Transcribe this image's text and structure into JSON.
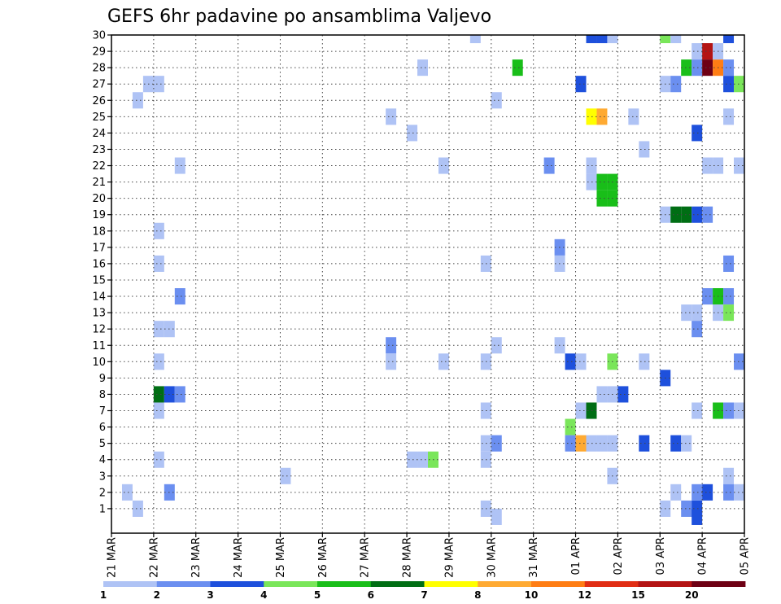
{
  "chart_data": {
    "type": "heatmap",
    "title": "GEFS 6hr padavine po ansamblima Valjevo",
    "y_categories": [
      "1",
      "2",
      "3",
      "4",
      "5",
      "6",
      "7",
      "8",
      "9",
      "10",
      "11",
      "12",
      "13",
      "14",
      "15",
      "16",
      "17",
      "18",
      "19",
      "20",
      "21",
      "22",
      "23",
      "24",
      "25",
      "26",
      "27",
      "28",
      "29",
      "30"
    ],
    "x_tick_labels": [
      "21 MAR",
      "22 MAR",
      "23 MAR",
      "24 MAR",
      "25 MAR",
      "26 MAR",
      "27 MAR",
      "28 MAR",
      "29 MAR",
      "30 MAR",
      "31 MAR",
      "01 APR",
      "02 APR",
      "03 APR",
      "04 APR",
      "05 APR"
    ],
    "x_range_days": [
      0,
      15
    ],
    "time_step_hours": 6,
    "grid": true,
    "colorbar": {
      "levels": [
        "1",
        "2",
        "3",
        "4",
        "5",
        "6",
        "7",
        "8",
        "10",
        "12",
        "15",
        "20"
      ],
      "colors": [
        "#afc3f5",
        "#6b8ff0",
        "#1e50dc",
        "#7ae65a",
        "#19be19",
        "#006e14",
        "#ffff00",
        "#ffaa32",
        "#ff7d14",
        "#e12d14",
        "#b41414",
        "#6e0014"
      ]
    },
    "cells": [
      {
        "x": 0.25,
        "y": 2,
        "v": 1
      },
      {
        "x": 0.5,
        "y": 1,
        "v": 1
      },
      {
        "x": 0.5,
        "y": 26,
        "v": 1
      },
      {
        "x": 0.75,
        "y": 27,
        "v": 1
      },
      {
        "x": 1.0,
        "y": 27,
        "v": 1
      },
      {
        "x": 1.0,
        "y": 18,
        "v": 1
      },
      {
        "x": 1.0,
        "y": 16,
        "v": 1
      },
      {
        "x": 1.0,
        "y": 12,
        "v": 1
      },
      {
        "x": 1.25,
        "y": 12,
        "v": 1
      },
      {
        "x": 1.0,
        "y": 10,
        "v": 1
      },
      {
        "x": 1.0,
        "y": 8,
        "v": 6
      },
      {
        "x": 1.25,
        "y": 8,
        "v": 3
      },
      {
        "x": 1.5,
        "y": 8,
        "v": 2
      },
      {
        "x": 1.0,
        "y": 7,
        "v": 1
      },
      {
        "x": 1.0,
        "y": 4,
        "v": 1
      },
      {
        "x": 1.25,
        "y": 2,
        "v": 2
      },
      {
        "x": 1.5,
        "y": 22,
        "v": 1
      },
      {
        "x": 1.5,
        "y": 14,
        "v": 2
      },
      {
        "x": 4.0,
        "y": 3,
        "v": 1
      },
      {
        "x": 6.5,
        "y": 25,
        "v": 1
      },
      {
        "x": 6.5,
        "y": 11,
        "v": 2
      },
      {
        "x": 6.5,
        "y": 10,
        "v": 1
      },
      {
        "x": 7.0,
        "y": 24,
        "v": 1
      },
      {
        "x": 7.25,
        "y": 28,
        "v": 1
      },
      {
        "x": 7.0,
        "y": 4,
        "v": 1
      },
      {
        "x": 7.25,
        "y": 4,
        "v": 1
      },
      {
        "x": 7.5,
        "y": 4,
        "v": 4
      },
      {
        "x": 7.75,
        "y": 22,
        "v": 1
      },
      {
        "x": 7.75,
        "y": 10,
        "v": 1
      },
      {
        "x": 8.5,
        "y": 30,
        "v": 1
      },
      {
        "x": 8.75,
        "y": 16,
        "v": 1
      },
      {
        "x": 8.75,
        "y": 7,
        "v": 1
      },
      {
        "x": 8.75,
        "y": 4,
        "v": 1
      },
      {
        "x": 8.75,
        "y": 1,
        "v": 1
      },
      {
        "x": 9.0,
        "y": 0.5,
        "v": 1
      },
      {
        "x": 8.75,
        "y": 10,
        "v": 1
      },
      {
        "x": 8.75,
        "y": 5,
        "v": 1
      },
      {
        "x": 9.0,
        "y": 5,
        "v": 2
      },
      {
        "x": 9.0,
        "y": 26,
        "v": 1
      },
      {
        "x": 9.0,
        "y": 11,
        "v": 1
      },
      {
        "x": 9.5,
        "y": 28,
        "v": 5
      },
      {
        "x": 10.25,
        "y": 22,
        "v": 2
      },
      {
        "x": 10.5,
        "y": 17,
        "v": 2
      },
      {
        "x": 10.5,
        "y": 16,
        "v": 1
      },
      {
        "x": 10.5,
        "y": 11,
        "v": 1
      },
      {
        "x": 10.75,
        "y": 10,
        "v": 3
      },
      {
        "x": 11.0,
        "y": 10,
        "v": 1
      },
      {
        "x": 10.75,
        "y": 6,
        "v": 4
      },
      {
        "x": 10.75,
        "y": 5,
        "v": 2
      },
      {
        "x": 11.0,
        "y": 5,
        "v": 8
      },
      {
        "x": 11.25,
        "y": 5,
        "v": 1
      },
      {
        "x": 11.5,
        "y": 5,
        "v": 1
      },
      {
        "x": 11.75,
        "y": 5,
        "v": 1
      },
      {
        "x": 11.0,
        "y": 7,
        "v": 1
      },
      {
        "x": 11.25,
        "y": 7,
        "v": 6
      },
      {
        "x": 11.0,
        "y": 27,
        "v": 3
      },
      {
        "x": 11.25,
        "y": 25,
        "v": 7
      },
      {
        "x": 11.5,
        "y": 25,
        "v": 8
      },
      {
        "x": 11.25,
        "y": 22,
        "v": 1
      },
      {
        "x": 11.25,
        "y": 21,
        "v": 1
      },
      {
        "x": 11.5,
        "y": 21,
        "v": 5
      },
      {
        "x": 11.75,
        "y": 21,
        "v": 5
      },
      {
        "x": 11.5,
        "y": 20,
        "v": 5
      },
      {
        "x": 11.75,
        "y": 20,
        "v": 5
      },
      {
        "x": 11.25,
        "y": 30,
        "v": 3
      },
      {
        "x": 11.5,
        "y": 30,
        "v": 3
      },
      {
        "x": 11.75,
        "y": 30,
        "v": 1
      },
      {
        "x": 11.5,
        "y": 8,
        "v": 1
      },
      {
        "x": 11.75,
        "y": 8,
        "v": 1
      },
      {
        "x": 12.0,
        "y": 8,
        "v": 3
      },
      {
        "x": 11.75,
        "y": 10,
        "v": 4
      },
      {
        "x": 11.75,
        "y": 3,
        "v": 1
      },
      {
        "x": 12.25,
        "y": 25,
        "v": 1
      },
      {
        "x": 12.5,
        "y": 23,
        "v": 1
      },
      {
        "x": 12.5,
        "y": 10,
        "v": 1
      },
      {
        "x": 12.5,
        "y": 5,
        "v": 3
      },
      {
        "x": 13.0,
        "y": 30,
        "v": 4
      },
      {
        "x": 13.25,
        "y": 30,
        "v": 1
      },
      {
        "x": 13.0,
        "y": 27,
        "v": 1
      },
      {
        "x": 13.25,
        "y": 27,
        "v": 2
      },
      {
        "x": 13.0,
        "y": 19,
        "v": 1
      },
      {
        "x": 13.25,
        "y": 19,
        "v": 6
      },
      {
        "x": 13.5,
        "y": 19,
        "v": 6
      },
      {
        "x": 13.75,
        "y": 19,
        "v": 3
      },
      {
        "x": 14.0,
        "y": 19,
        "v": 2
      },
      {
        "x": 13.0,
        "y": 9,
        "v": 3
      },
      {
        "x": 13.0,
        "y": 1,
        "v": 1
      },
      {
        "x": 13.25,
        "y": 2,
        "v": 1
      },
      {
        "x": 13.25,
        "y": 5,
        "v": 3
      },
      {
        "x": 13.5,
        "y": 5,
        "v": 1
      },
      {
        "x": 13.5,
        "y": 1,
        "v": 2
      },
      {
        "x": 13.75,
        "y": 1,
        "v": 3
      },
      {
        "x": 13.75,
        "y": 0.5,
        "v": 3
      },
      {
        "x": 13.5,
        "y": 13,
        "v": 1
      },
      {
        "x": 13.75,
        "y": 13,
        "v": 1
      },
      {
        "x": 13.75,
        "y": 12,
        "v": 2
      },
      {
        "x": 13.75,
        "y": 7,
        "v": 1
      },
      {
        "x": 13.75,
        "y": 2,
        "v": 2
      },
      {
        "x": 14.0,
        "y": 2,
        "v": 3
      },
      {
        "x": 13.5,
        "y": 28,
        "v": 5
      },
      {
        "x": 13.75,
        "y": 28,
        "v": 2
      },
      {
        "x": 14.0,
        "y": 28,
        "v": 20
      },
      {
        "x": 14.25,
        "y": 28,
        "v": 10
      },
      {
        "x": 14.5,
        "y": 28,
        "v": 2
      },
      {
        "x": 13.75,
        "y": 29,
        "v": 1
      },
      {
        "x": 14.0,
        "y": 29,
        "v": 15
      },
      {
        "x": 14.25,
        "y": 29,
        "v": 1
      },
      {
        "x": 13.75,
        "y": 24,
        "v": 3
      },
      {
        "x": 14.0,
        "y": 22,
        "v": 1
      },
      {
        "x": 14.25,
        "y": 22,
        "v": 1
      },
      {
        "x": 14.0,
        "y": 14,
        "v": 2
      },
      {
        "x": 14.25,
        "y": 14,
        "v": 5
      },
      {
        "x": 14.5,
        "y": 14,
        "v": 2
      },
      {
        "x": 14.25,
        "y": 13,
        "v": 1
      },
      {
        "x": 14.5,
        "y": 13,
        "v": 4
      },
      {
        "x": 14.25,
        "y": 7,
        "v": 5
      },
      {
        "x": 14.5,
        "y": 7,
        "v": 2
      },
      {
        "x": 14.75,
        "y": 7,
        "v": 1
      },
      {
        "x": 14.5,
        "y": 30,
        "v": 3
      },
      {
        "x": 14.5,
        "y": 27,
        "v": 3
      },
      {
        "x": 14.75,
        "y": 27,
        "v": 4
      },
      {
        "x": 14.5,
        "y": 25,
        "v": 1
      },
      {
        "x": 14.5,
        "y": 16,
        "v": 2
      },
      {
        "x": 14.5,
        "y": 3,
        "v": 1
      },
      {
        "x": 14.5,
        "y": 2,
        "v": 2
      },
      {
        "x": 14.75,
        "y": 2,
        "v": 1
      },
      {
        "x": 14.75,
        "y": 22,
        "v": 1
      },
      {
        "x": 14.75,
        "y": 10,
        "v": 2
      }
    ]
  }
}
